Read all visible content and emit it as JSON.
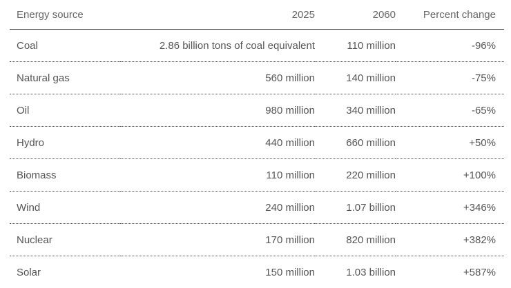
{
  "table": {
    "headers": [
      "Energy source",
      "2025",
      "2060",
      "Percent change"
    ],
    "rows": [
      [
        "Coal",
        "2.86 billion tons of coal equivalent",
        "110 million",
        "-96%"
      ],
      [
        "Natural gas",
        "560 million",
        "140 million",
        "-75%"
      ],
      [
        "Oil",
        "980 million",
        "340 million",
        "-65%"
      ],
      [
        "Hydro",
        "440 million",
        "660 million",
        "+50%"
      ],
      [
        "Biomass",
        "110 million",
        "220 million",
        "+100%"
      ],
      [
        "Wind",
        "240 million",
        "1.07 billion",
        "+346%"
      ],
      [
        "Nuclear",
        "170 million",
        "820 million",
        "+382%"
      ],
      [
        "Solar",
        "150 million",
        "1.03 billion",
        "+587%"
      ]
    ]
  }
}
